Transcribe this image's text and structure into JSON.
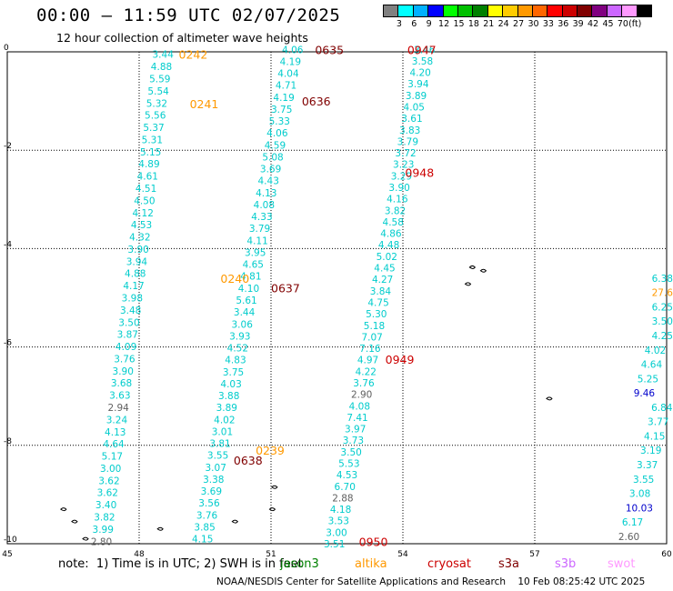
{
  "header": {
    "title": "00:00 – 11:59 UTC 02/07/2025",
    "subtitle": "12 hour collection of altimeter wave heights"
  },
  "colorbar": {
    "unit_label": "(ft)",
    "labels": [
      "3",
      "6",
      "9",
      "12",
      "15",
      "18",
      "21",
      "24",
      "27",
      "30",
      "33",
      "36",
      "39",
      "42",
      "45",
      "70"
    ],
    "colors": [
      "#808080",
      "#00ffff",
      "#00b0ff",
      "#0000ff",
      "#00ff00",
      "#00c000",
      "#008000",
      "#ffff00",
      "#ffcc00",
      "#ff9900",
      "#ff6600",
      "#ff0000",
      "#cc0000",
      "#800000",
      "#800080",
      "#cc66ff",
      "#ff99ff",
      "#000000"
    ]
  },
  "map": {
    "lon_range": [
      45,
      60
    ],
    "lat_range": [
      -10,
      0
    ],
    "x_ticks": [
      "45",
      "48",
      "51",
      "54",
      "57",
      "60"
    ],
    "y_ticks": [
      "0",
      "-2",
      "-4",
      "-6",
      "-8",
      "-10"
    ],
    "time_labels": [
      {
        "text": "0242",
        "lon": 48.9,
        "lat": -0.05,
        "color": "#ff9900"
      },
      {
        "text": "0241",
        "lon": 49.15,
        "lat": -1.05,
        "color": "#ff9900"
      },
      {
        "text": "0240",
        "lon": 49.85,
        "lat": -4.6,
        "color": "#ff9900"
      },
      {
        "text": "0239",
        "lon": 50.65,
        "lat": -8.1,
        "color": "#ff9900"
      },
      {
        "text": "0638",
        "lon": 50.15,
        "lat": -8.3,
        "color": "#800000"
      },
      {
        "text": "0637",
        "lon": 51.0,
        "lat": -4.8,
        "color": "#800000"
      },
      {
        "text": "0636",
        "lon": 51.7,
        "lat": -1.0,
        "color": "#800000"
      },
      {
        "text": "0635",
        "lon": 52.0,
        "lat": 0.05,
        "color": "#800000"
      },
      {
        "text": "0947",
        "lon": 54.1,
        "lat": 0.05,
        "color": "#cc0000"
      },
      {
        "text": "0948",
        "lon": 54.05,
        "lat": -2.45,
        "color": "#cc0000"
      },
      {
        "text": "0949",
        "lon": 53.6,
        "lat": -6.25,
        "color": "#cc0000"
      },
      {
        "text": "0950",
        "lon": 53.0,
        "lat": -9.95,
        "color": "#cc0000"
      }
    ],
    "tracks": [
      {
        "name": "track-a",
        "lon_start": 48.3,
        "lat_start": -0.05,
        "lon_end": 46.9,
        "lat_end": -9.95,
        "values": [
          "3.44",
          "4.88",
          "5.59",
          "5.54",
          "5.32",
          "5.56",
          "5.37",
          "5.31",
          "5.15",
          "4.89",
          "4.61",
          "4.51",
          "4.50",
          "4.12",
          "4.53",
          "4.32",
          "3.90",
          "3.94",
          "4.88",
          "4.17",
          "3.98",
          "3.48",
          "3.50",
          "3.87",
          "4.09",
          "3.76",
          "3.90",
          "3.68",
          "3.63",
          "2.94",
          "3.24",
          "4.13",
          "4.64",
          "5.17",
          "3.00",
          "3.62",
          "3.62",
          "3.40",
          "3.82",
          "3.99",
          "2.80"
        ]
      },
      {
        "name": "track-b",
        "lon_start": 51.25,
        "lat_start": 0.05,
        "lon_end": 49.2,
        "lat_end": -9.9,
        "values": [
          "4.06",
          "4.19",
          "4.04",
          "4.71",
          "4.19",
          "3.75",
          "5.33",
          "4.06",
          "4.59",
          "5.08",
          "3.69",
          "4.43",
          "4.13",
          "4.08",
          "4.33",
          "3.79",
          "4.11",
          "3.95",
          "4.65",
          "4.81",
          "4.10",
          "5.61",
          "3.44",
          "3.06",
          "3.93",
          "4.52",
          "4.83",
          "3.75",
          "4.03",
          "3.88",
          "3.89",
          "4.02",
          "3.01",
          "3.81",
          "3.55",
          "3.07",
          "3.38",
          "3.69",
          "3.56",
          "3.76",
          "3.85",
          "4.15"
        ]
      },
      {
        "name": "track-c",
        "lon_start": 54.25,
        "lat_start": 0.05,
        "lon_end": 52.2,
        "lat_end": -10.0,
        "values": [
          "3.46",
          "3.58",
          "4.20",
          "3.94",
          "3.89",
          "4.05",
          "3.61",
          "3.83",
          "3.79",
          "3.72",
          "3.23",
          "3.29",
          "3.90",
          "4.16",
          "3.82",
          "4.58",
          "4.86",
          "4.48",
          "5.02",
          "4.45",
          "4.27",
          "3.84",
          "4.75",
          "5.30",
          "5.18",
          "7.07",
          "7.16",
          "4.97",
          "4.22",
          "3.76",
          "2.90",
          "4.08",
          "7.41",
          "3.97",
          "3.73",
          "3.50",
          "5.53",
          "4.53",
          "6.70",
          "2.88",
          "4.18",
          "3.53",
          "3.00",
          "3.51"
        ]
      },
      {
        "name": "track-d",
        "lon_start": 60.4,
        "lat_start": -4.6,
        "lon_end": 58.9,
        "lat_end": -9.85,
        "values": [
          "6.38",
          "27.6",
          "6.25",
          "3.50",
          "4.25",
          "4.02",
          "4.64",
          "5.25",
          "9.46",
          "6.84",
          "3.77",
          "4.15",
          "3.19",
          "3.37",
          "3.55",
          "3.08",
          "10.03",
          "6.17",
          "2.60"
        ]
      }
    ]
  },
  "note": "note:  1) Time is in UTC; 2) SWH is in feet",
  "legend": [
    {
      "label": "jason3",
      "color": "#008000"
    },
    {
      "label": "altika",
      "color": "#ff9900"
    },
    {
      "label": "cryosat",
      "color": "#cc0000"
    },
    {
      "label": "s3a",
      "color": "#800000"
    },
    {
      "label": "s3b",
      "color": "#cc66ff"
    },
    {
      "label": "swot",
      "color": "#ff99ff"
    }
  ],
  "footer": "NOAA/NESDIS Center for Satellite Applications and Research    10 Feb 08:25:42 UTC 2025"
}
